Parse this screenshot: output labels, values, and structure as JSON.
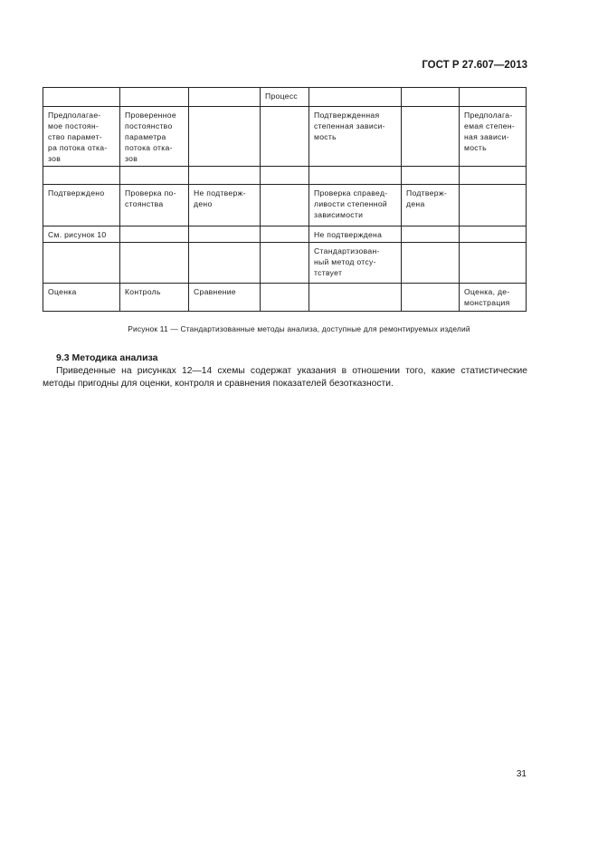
{
  "header": {
    "doc_number": "ГОСТ Р 27.607—2013"
  },
  "table": {
    "rows": [
      [
        "",
        "",
        "",
        "Процесс",
        "",
        "",
        ""
      ],
      [
        "Предполагае-\nмое постоян-\nство парамет-\nра потока отка-\nзов",
        "Проверенное\nпостоянство\nпараметра\nпотока отка-\nзов",
        "",
        "",
        "Подтвержденная\nстепенная зависи-\nмость",
        "",
        "Предполага-\nемая степен-\nная зависи-\nмость"
      ],
      [
        "",
        "",
        "",
        "",
        "",
        "",
        ""
      ],
      [
        "Подтверждено",
        "Проверка по-\nстоянства",
        "Не подтверж-\nдено",
        "",
        "Проверка справед-\nливости степенной\nзависимости",
        "Подтверж-\nдена",
        ""
      ],
      [
        "См. рисунок 10",
        "",
        "",
        "",
        "Не подтверждена",
        "",
        ""
      ],
      [
        "",
        "",
        "",
        "",
        "Стандартизован-\nный метод отсу-\nтствует",
        "",
        ""
      ],
      [
        "Оценка",
        "Контроль",
        "Сравнение",
        "",
        "",
        "",
        "Оценка, де-\nмонстрация"
      ]
    ]
  },
  "caption": "Рисунок  11 — Стандартизованные методы анализа, доступные для ремонтируемых изделий",
  "section": {
    "title": "9.3  Методика анализа",
    "text": "Приведенные на рисунках 12—14 схемы содержат указания в отношении того, какие статистические методы пригодны для оценки, контроля и сравнения показателей безотказности."
  },
  "page_number": "31"
}
